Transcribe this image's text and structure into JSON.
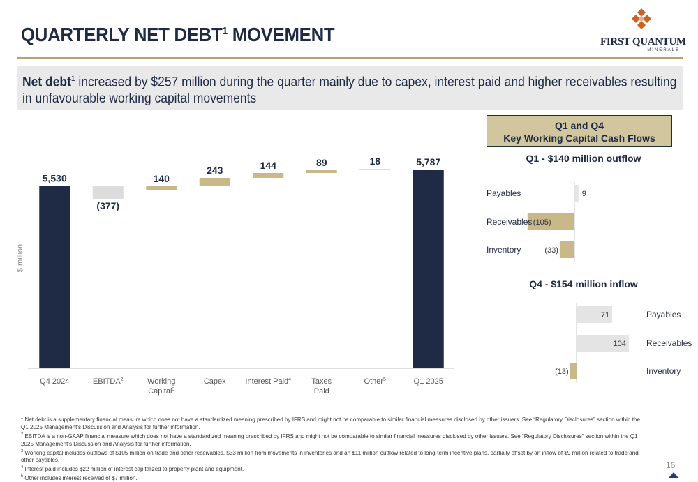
{
  "header": {
    "title": "QUARTERLY NET DEBT",
    "title_sup": "1",
    "title_rest": " MOVEMENT",
    "logo_name": "FIRST QUANTUM",
    "logo_sub": "MINERALS"
  },
  "banner": {
    "bold": "Net debt",
    "sup": "1",
    "text": " increased by $257 million during the quarter mainly due to capex, interest paid and higher receivables resulting in unfavourable working capital movements"
  },
  "colors": {
    "navy": "#1f2a44",
    "tan": "#c9b98a",
    "light_gray": "#dcdcdc",
    "rule": "#b8a171"
  },
  "chart_data": [
    {
      "type": "bar",
      "subtype": "waterfall",
      "ylabel": "$ million",
      "categories": [
        {
          "label": "Q4 2024",
          "sup": ""
        },
        {
          "label": "EBITDA",
          "sup": "2"
        },
        {
          "label": "Working Capital",
          "sup": "3"
        },
        {
          "label": "Capex",
          "sup": ""
        },
        {
          "label": "Interest Paid",
          "sup": "4"
        },
        {
          "label": "Taxes Paid",
          "sup": ""
        },
        {
          "label": "Other",
          "sup": "5"
        },
        {
          "label": "Q1 2025",
          "sup": ""
        }
      ],
      "values": [
        5530,
        -377,
        140,
        243,
        144,
        89,
        18,
        5787
      ],
      "data_labels": [
        "5,530",
        "(377)",
        "140",
        "243",
        "144",
        "89",
        "18",
        "5,787"
      ],
      "bar_kinds": [
        "total",
        "decrease",
        "increase",
        "increase",
        "increase",
        "increase",
        "other",
        "total"
      ]
    },
    {
      "type": "bar",
      "orientation": "horizontal",
      "title": "Q1 - $140 million outflow",
      "categories": [
        "Payables",
        "Receivables",
        "Inventory"
      ],
      "values": [
        9,
        -105,
        -33
      ],
      "data_labels": [
        "9",
        "(105)",
        "(33)"
      ]
    },
    {
      "type": "bar",
      "orientation": "horizontal",
      "title": "Q4 - $154 million inflow",
      "categories": [
        "Payables",
        "Receivables",
        "Inventory"
      ],
      "values": [
        71,
        104,
        -13
      ],
      "data_labels": [
        "71",
        "104",
        "(13)"
      ]
    }
  ],
  "wc_box": {
    "line1": "Q1 and Q4",
    "line2": "Key Working Capital Cash Flows"
  },
  "footnotes": [
    {
      "sup": "1",
      "text": " Net debt is a supplementary financial measure which does not have a standardized meaning prescribed by IFRS and might not be comparable to similar financial measures disclosed by other issuers. See “Regulatory Disclosures” section within the Q1 2025 Management’s Discussion and Analysis for further information."
    },
    {
      "sup": "2",
      "text": " EBITDA is a non-GAAP financial measure which does not have a standardized meaning prescribed by IFRS and might not be comparable to similar financial measures disclosed by other issuers. See “Regulatory Disclosures” section within the Q1 2025 Management’s Discussion and Analysis for further information."
    },
    {
      "sup": "3",
      "text": " Working capital includes outflows of $105 million on trade and other receivables, $33 million from movements in inventories and an $11 million outflow related to long-term incentive plans, partially offset by an inflow of $9 million related to trade and other payables."
    },
    {
      "sup": "4",
      "text": " Interest paid includes $22 million of interest capitalized to property plant and equipment."
    },
    {
      "sup": "5",
      "text": " Other includes interest received of $7 million."
    }
  ],
  "page_number": "16"
}
